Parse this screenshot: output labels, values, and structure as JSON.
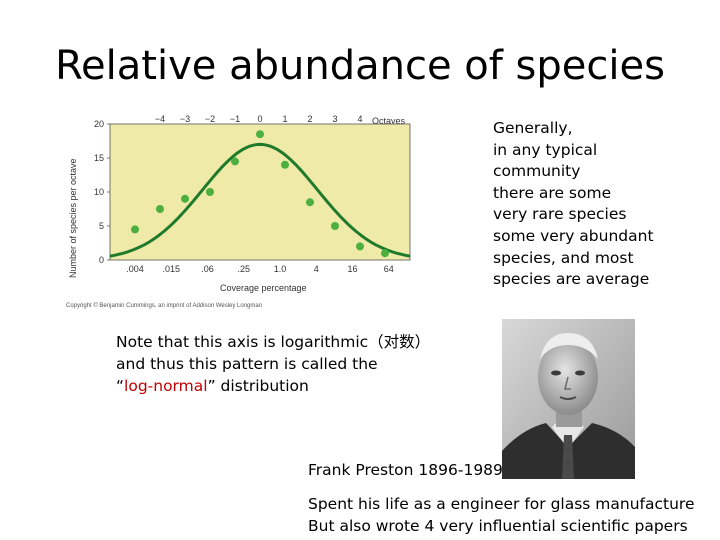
{
  "title": "Relative abundance of species",
  "figure": {
    "octaves_label": "Octaves",
    "octave_ticks": [
      "-4",
      "-3",
      "-2",
      "-1",
      "0",
      "1",
      "2",
      "3",
      "4"
    ],
    "coverage_ticks": [
      ".004",
      ".015",
      ".06",
      ".25",
      "1.0",
      "4",
      "16",
      "64"
    ],
    "y_ticks": [
      "0",
      "5",
      "10",
      "15",
      "20"
    ],
    "y_label": "Number of species per octave",
    "x_label": "Coverage percentage",
    "copyright": "Copyright © Benjamin Cummings, an imprint of Addison Wesley Longman",
    "plot_background": "#efeaa8",
    "curve_color": "#1f7a2c",
    "point_color": "#4caf3f"
  },
  "chart_data": {
    "type": "scatter",
    "x": [
      -5,
      -4,
      -3,
      -2,
      -1,
      0,
      1,
      2,
      3,
      4,
      5
    ],
    "y": [
      4.5,
      7.5,
      9,
      10,
      14.5,
      18.5,
      14,
      8.5,
      5,
      2,
      1
    ],
    "fit_curve": "log-normal",
    "fit_peak": 17,
    "xlabel": "Coverage percentage",
    "ylabel": "Number of species per octave",
    "ylim": [
      0,
      20
    ],
    "xlim": [
      -6,
      6
    ]
  },
  "side_text": [
    "Generally,",
    "in any typical",
    "community",
    "there are some",
    "very rare species",
    "some very abundant",
    "species, and most",
    "species are average"
  ],
  "note": {
    "line1": "Note that this axis is logarithmic（对数）",
    "line2": "and thus this pattern is called the",
    "line3_open": "“",
    "line3_red": "log-normal",
    "line3_close": "” distribution"
  },
  "caption": "Frank Preston 1896-1989",
  "bio": [
    "Spent his life as a engineer for glass manufacture",
    "But also wrote 4 very influential scientific papers"
  ]
}
